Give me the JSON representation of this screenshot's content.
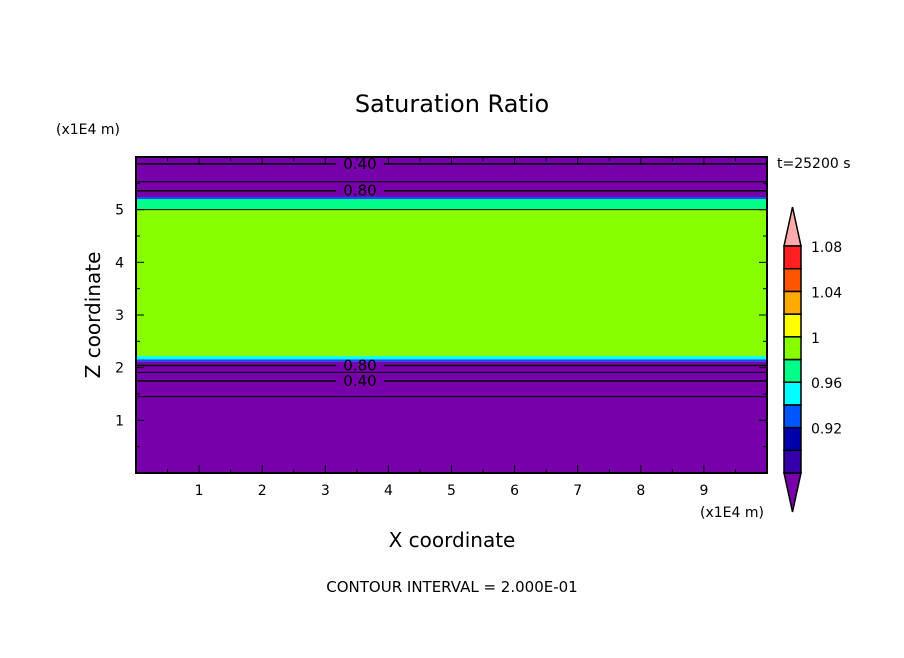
{
  "chart_data": {
    "type": "heatmap",
    "title": "Saturation Ratio",
    "xlabel": "X coordinate",
    "ylabel": "Z coordinate",
    "x_unit": "(x1E4 m)",
    "y_unit": "(x1E4 m)",
    "time_label": "t=25200 s",
    "footer": "CONTOUR INTERVAL = 2.000E-01",
    "xlim": [
      0,
      10
    ],
    "ylim": [
      0,
      6
    ],
    "xticks": [
      "1",
      "2",
      "3",
      "4",
      "5",
      "6",
      "7",
      "8",
      "9"
    ],
    "yticks": [
      "1",
      "2",
      "3",
      "4",
      "5"
    ],
    "bands": [
      {
        "z0": 0,
        "z1": 2.12,
        "color": "#7700aa"
      },
      {
        "z0": 2.12,
        "z1": 2.16,
        "color": "#0055ff"
      },
      {
        "z0": 2.16,
        "z1": 2.22,
        "color": "#00ffff"
      },
      {
        "z0": 2.22,
        "z1": 5.0,
        "color": "#88ff00"
      },
      {
        "z0": 5.0,
        "z1": 5.2,
        "color": "#00ff88"
      },
      {
        "z0": 5.2,
        "z1": 5.24,
        "color": "#0055ff"
      },
      {
        "z0": 5.24,
        "z1": 6.0,
        "color": "#7700aa"
      }
    ],
    "contours": [
      {
        "z": 1.45,
        "label": ""
      },
      {
        "z": 1.75,
        "label": "0.40"
      },
      {
        "z": 1.91,
        "label": ""
      },
      {
        "z": 2.04,
        "label": "0.80"
      },
      {
        "z": 5.0,
        "label": ""
      },
      {
        "z": 5.36,
        "label": "0.80"
      },
      {
        "z": 5.53,
        "label": ""
      },
      {
        "z": 5.87,
        "label": "0.40"
      }
    ],
    "colorbar": {
      "over_color": "#ffaaaa",
      "under_color": "#7700aa",
      "colors": [
        "#3300aa",
        "#0000aa",
        "#0055ff",
        "#00ffff",
        "#00ff88",
        "#88ff00",
        "#ffff00",
        "#ffaa00",
        "#ff5500",
        "#ff2020"
      ],
      "tick_labels": [
        "0.92",
        "0.96",
        "1",
        "1.04",
        "1.08"
      ]
    }
  }
}
